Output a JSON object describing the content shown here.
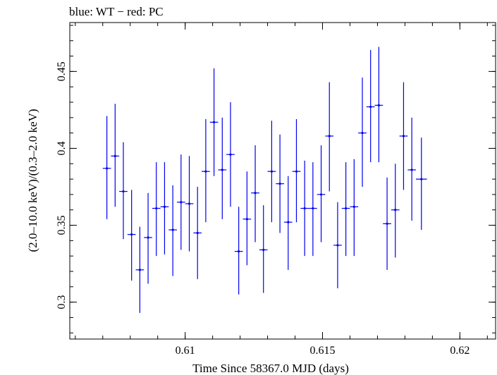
{
  "chart_data": {
    "type": "scatter",
    "title": "blue: WT − red: PC",
    "xlabel": "Time Since 58367.0 MJD (days)",
    "ylabel": "(2.0–10.0 keV)/(0.3–2.0 keV)",
    "xlim": [
      0.6058,
      0.6213
    ],
    "ylim": [
      0.276,
      0.4818
    ],
    "xticks": [
      {
        "value": 0.61,
        "label": "0.61"
      },
      {
        "value": 0.615,
        "label": "0.615"
      },
      {
        "value": 0.62,
        "label": "0.62"
      }
    ],
    "xminor_step": 0.001,
    "yticks": [
      {
        "value": 0.3,
        "label": "0.3"
      },
      {
        "value": 0.35,
        "label": "0.35"
      },
      {
        "value": 0.4,
        "label": "0.4"
      },
      {
        "value": 0.45,
        "label": "0.45"
      }
    ],
    "yminor_step": 0.01,
    "grid": false,
    "series": [
      {
        "color": "#0000ee",
        "points": [
          {
            "x": 0.60715,
            "y": 0.387,
            "xerr": 0.00015,
            "yerr_lo": 0.033,
            "yerr_hi": 0.034
          },
          {
            "x": 0.60745,
            "y": 0.395,
            "xerr": 0.00015,
            "yerr_lo": 0.033,
            "yerr_hi": 0.034
          },
          {
            "x": 0.60775,
            "y": 0.372,
            "xerr": 0.00015,
            "yerr_lo": 0.031,
            "yerr_hi": 0.032
          },
          {
            "x": 0.60805,
            "y": 0.344,
            "xerr": 0.00015,
            "yerr_lo": 0.03,
            "yerr_hi": 0.029
          },
          {
            "x": 0.60835,
            "y": 0.321,
            "xerr": 0.00015,
            "yerr_lo": 0.028,
            "yerr_hi": 0.028
          },
          {
            "x": 0.60865,
            "y": 0.342,
            "xerr": 0.00015,
            "yerr_lo": 0.03,
            "yerr_hi": 0.029
          },
          {
            "x": 0.60895,
            "y": 0.361,
            "xerr": 0.00015,
            "yerr_lo": 0.031,
            "yerr_hi": 0.03
          },
          {
            "x": 0.60925,
            "y": 0.362,
            "xerr": 0.00015,
            "yerr_lo": 0.031,
            "yerr_hi": 0.029
          },
          {
            "x": 0.60955,
            "y": 0.347,
            "xerr": 0.00015,
            "yerr_lo": 0.03,
            "yerr_hi": 0.029
          },
          {
            "x": 0.60985,
            "y": 0.365,
            "xerr": 0.00015,
            "yerr_lo": 0.031,
            "yerr_hi": 0.031
          },
          {
            "x": 0.61015,
            "y": 0.364,
            "xerr": 0.00015,
            "yerr_lo": 0.031,
            "yerr_hi": 0.031
          },
          {
            "x": 0.61045,
            "y": 0.345,
            "xerr": 0.00015,
            "yerr_lo": 0.03,
            "yerr_hi": 0.03
          },
          {
            "x": 0.61075,
            "y": 0.385,
            "xerr": 0.00015,
            "yerr_lo": 0.033,
            "yerr_hi": 0.034
          },
          {
            "x": 0.61105,
            "y": 0.417,
            "xerr": 0.00015,
            "yerr_lo": 0.035,
            "yerr_hi": 0.035
          },
          {
            "x": 0.61135,
            "y": 0.386,
            "xerr": 0.00015,
            "yerr_lo": 0.032,
            "yerr_hi": 0.034
          },
          {
            "x": 0.61165,
            "y": 0.396,
            "xerr": 0.00015,
            "yerr_lo": 0.034,
            "yerr_hi": 0.034
          },
          {
            "x": 0.61195,
            "y": 0.333,
            "xerr": 0.00015,
            "yerr_lo": 0.028,
            "yerr_hi": 0.029
          },
          {
            "x": 0.61225,
            "y": 0.354,
            "xerr": 0.00015,
            "yerr_lo": 0.03,
            "yerr_hi": 0.031
          },
          {
            "x": 0.61255,
            "y": 0.371,
            "xerr": 0.00015,
            "yerr_lo": 0.032,
            "yerr_hi": 0.031
          },
          {
            "x": 0.61285,
            "y": 0.334,
            "xerr": 0.00015,
            "yerr_lo": 0.028,
            "yerr_hi": 0.029
          },
          {
            "x": 0.61315,
            "y": 0.385,
            "xerr": 0.00015,
            "yerr_lo": 0.033,
            "yerr_hi": 0.033
          },
          {
            "x": 0.61345,
            "y": 0.377,
            "xerr": 0.00015,
            "yerr_lo": 0.032,
            "yerr_hi": 0.032
          },
          {
            "x": 0.61375,
            "y": 0.352,
            "xerr": 0.00015,
            "yerr_lo": 0.031,
            "yerr_hi": 0.03
          },
          {
            "x": 0.61405,
            "y": 0.385,
            "xerr": 0.00015,
            "yerr_lo": 0.033,
            "yerr_hi": 0.034
          },
          {
            "x": 0.61435,
            "y": 0.361,
            "xerr": 0.00015,
            "yerr_lo": 0.031,
            "yerr_hi": 0.031
          },
          {
            "x": 0.61465,
            "y": 0.361,
            "xerr": 0.00015,
            "yerr_lo": 0.031,
            "yerr_hi": 0.03
          },
          {
            "x": 0.61495,
            "y": 0.37,
            "xerr": 0.00015,
            "yerr_lo": 0.031,
            "yerr_hi": 0.032
          },
          {
            "x": 0.61525,
            "y": 0.408,
            "xerr": 0.00015,
            "yerr_lo": 0.036,
            "yerr_hi": 0.035
          },
          {
            "x": 0.61555,
            "y": 0.337,
            "xerr": 0.00015,
            "yerr_lo": 0.028,
            "yerr_hi": 0.028
          },
          {
            "x": 0.61585,
            "y": 0.361,
            "xerr": 0.00015,
            "yerr_lo": 0.031,
            "yerr_hi": 0.03
          },
          {
            "x": 0.61615,
            "y": 0.362,
            "xerr": 0.00015,
            "yerr_lo": 0.032,
            "yerr_hi": 0.031
          },
          {
            "x": 0.61645,
            "y": 0.41,
            "xerr": 0.00015,
            "yerr_lo": 0.035,
            "yerr_hi": 0.036
          },
          {
            "x": 0.61675,
            "y": 0.427,
            "xerr": 0.00015,
            "yerr_lo": 0.036,
            "yerr_hi": 0.037
          },
          {
            "x": 0.61705,
            "y": 0.428,
            "xerr": 0.00015,
            "yerr_lo": 0.037,
            "yerr_hi": 0.038
          },
          {
            "x": 0.61735,
            "y": 0.351,
            "xerr": 0.00015,
            "yerr_lo": 0.03,
            "yerr_hi": 0.03
          },
          {
            "x": 0.61765,
            "y": 0.36,
            "xerr": 0.00015,
            "yerr_lo": 0.031,
            "yerr_hi": 0.03
          },
          {
            "x": 0.61795,
            "y": 0.408,
            "xerr": 0.00015,
            "yerr_lo": 0.035,
            "yerr_hi": 0.035
          },
          {
            "x": 0.61825,
            "y": 0.386,
            "xerr": 0.00015,
            "yerr_lo": 0.033,
            "yerr_hi": 0.034
          },
          {
            "x": 0.6186,
            "y": 0.38,
            "xerr": 0.0002,
            "yerr_lo": 0.033,
            "yerr_hi": 0.027
          }
        ]
      }
    ]
  }
}
